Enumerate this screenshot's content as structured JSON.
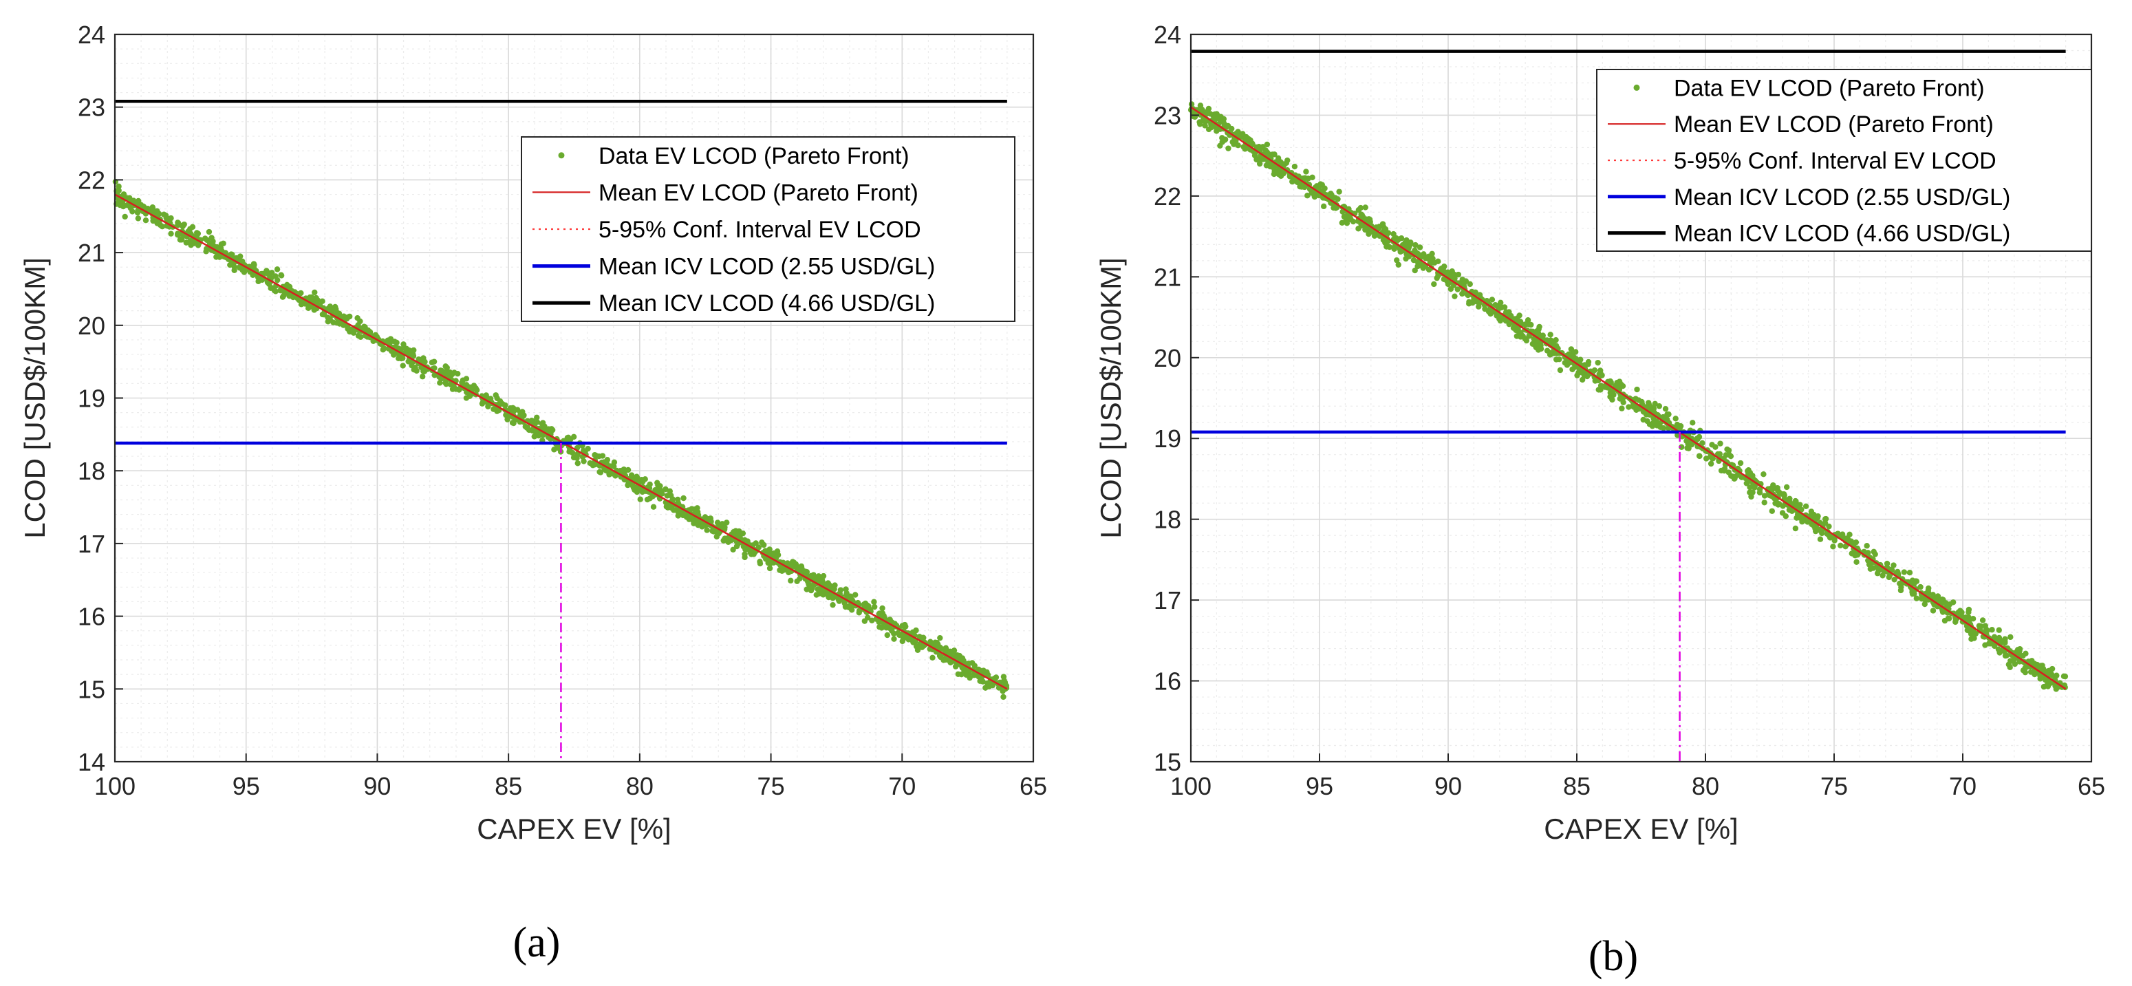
{
  "colors": {
    "scatter": "#6aab2e",
    "mean_ev": "#d62020",
    "conf_interval": "#ff3b3b",
    "icv_255": "#0000dd",
    "icv_466": "#000000",
    "intersection": "#e000e0",
    "grid_major": "#d9d9d9",
    "grid_minor": "#ececec",
    "axis": "#262626"
  },
  "chart_data": [
    {
      "id": "a",
      "type": "scatter",
      "subfigure_label": "(a)",
      "xlabel": "CAPEX EV [%]",
      "ylabel": "LCOD [USD$/100KM]",
      "xlim": [
        100,
        65
      ],
      "ylim": [
        14,
        24
      ],
      "x_ticks": [
        "100",
        "95",
        "90",
        "85",
        "80",
        "75",
        "70",
        "65"
      ],
      "y_ticks": [
        "14",
        "15",
        "16",
        "17",
        "18",
        "19",
        "20",
        "21",
        "22",
        "23",
        "24"
      ],
      "grid": "on (major and minor)",
      "legend_position": "top-right",
      "series": [
        {
          "name": "Data EV LCOD (Pareto Front)",
          "kind": "scatter",
          "x": [
            100,
            66
          ],
          "y": [
            21.8,
            15.0
          ],
          "spread": 0.12
        },
        {
          "name": "Mean EV LCOD (Pareto Front)",
          "kind": "line",
          "x": [
            100,
            66
          ],
          "y": [
            21.8,
            15.0
          ]
        },
        {
          "name": "5-95% Conf. Interval EV LCOD",
          "kind": "dotted",
          "x": [
            100,
            66
          ],
          "y": [
            21.8,
            15.0
          ]
        },
        {
          "name": "Mean ICV LCOD (2.55 USD/GL)",
          "kind": "hline",
          "x": [
            100,
            66
          ],
          "y": [
            18.38,
            18.38
          ]
        },
        {
          "name": "Mean ICV LCOD (4.66 USD/GL)",
          "kind": "hline",
          "x": [
            100,
            66
          ],
          "y": [
            23.08,
            23.08
          ]
        }
      ],
      "intersection": {
        "x": 83.0,
        "y": 18.38
      }
    },
    {
      "id": "b",
      "type": "scatter",
      "subfigure_label": "(b)",
      "xlabel": "CAPEX EV [%]",
      "ylabel": "LCOD [USD$/100KM]",
      "xlim": [
        100,
        65
      ],
      "ylim": [
        15,
        24
      ],
      "x_ticks": [
        "100",
        "95",
        "90",
        "85",
        "80",
        "75",
        "70",
        "65"
      ],
      "y_ticks": [
        "15",
        "16",
        "17",
        "18",
        "19",
        "20",
        "21",
        "22",
        "23",
        "24"
      ],
      "grid": "on (major and minor)",
      "legend_position": "top-right",
      "series": [
        {
          "name": "Data EV LCOD (Pareto Front)",
          "kind": "scatter",
          "x": [
            100,
            66
          ],
          "y": [
            23.1,
            15.9
          ],
          "spread": 0.13
        },
        {
          "name": "Mean EV LCOD (Pareto Front)",
          "kind": "line",
          "x": [
            100,
            66
          ],
          "y": [
            23.1,
            15.9
          ]
        },
        {
          "name": "5-95% Conf. Interval EV LCOD",
          "kind": "dotted",
          "x": [
            100,
            66
          ],
          "y": [
            23.1,
            15.9
          ]
        },
        {
          "name": "Mean ICV LCOD (2.55 USD/GL)",
          "kind": "hline",
          "x": [
            100,
            66
          ],
          "y": [
            19.08,
            19.08
          ]
        },
        {
          "name": "Mean ICV LCOD (4.66 USD/GL)",
          "kind": "hline",
          "x": [
            100,
            66
          ],
          "y": [
            23.79,
            23.79
          ]
        }
      ],
      "intersection": {
        "x": 81.0,
        "y": 19.08
      }
    }
  ]
}
